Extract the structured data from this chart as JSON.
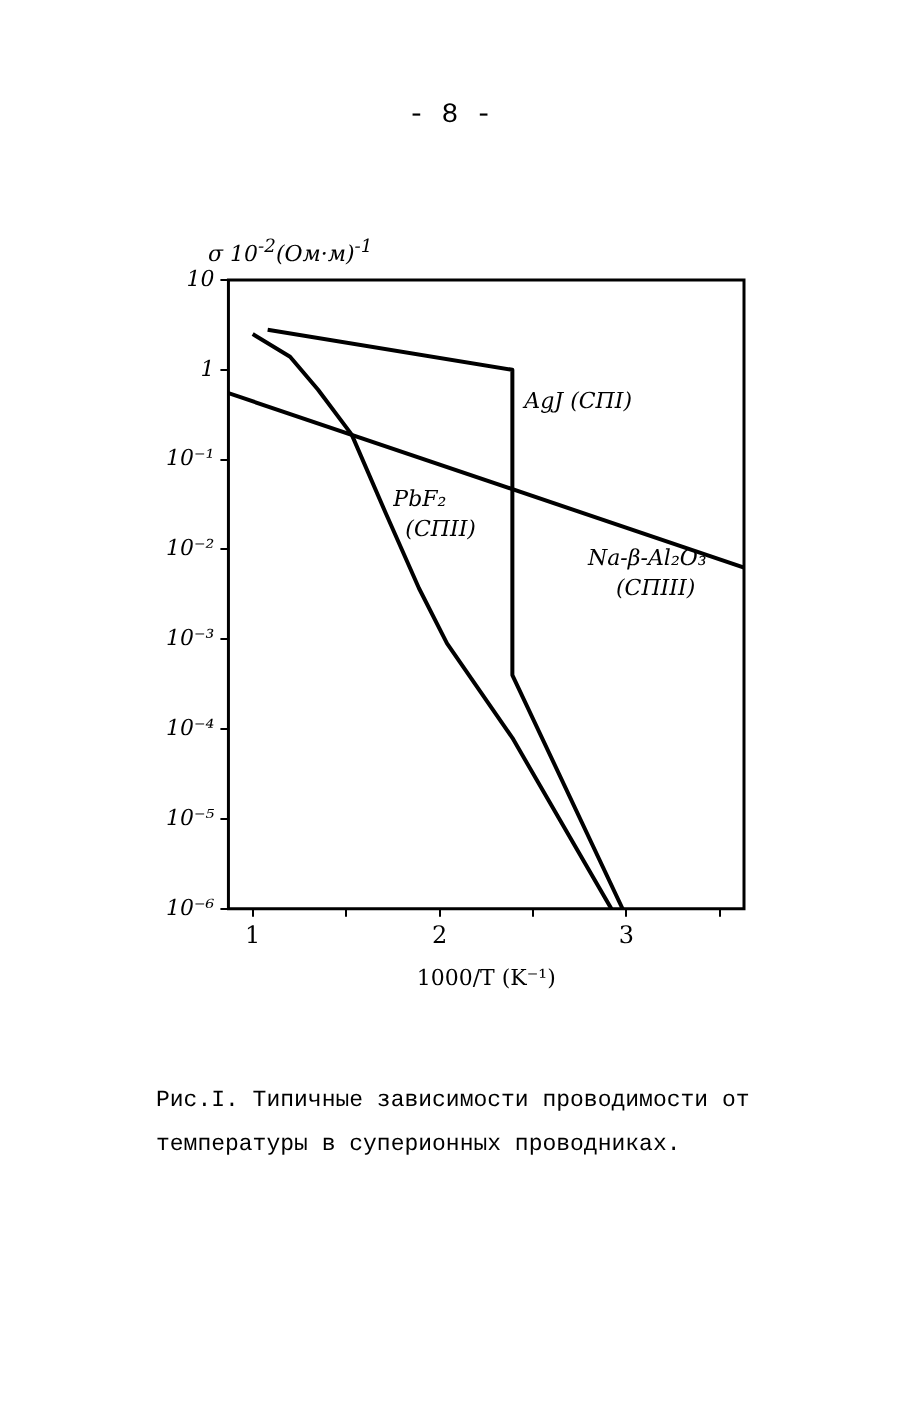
{
  "chart_data": {
    "type": "line",
    "xlabel": "1000/T (K⁻¹)",
    "ylabel": "σ 10$^{-2}$(Ом·м)$^{-1}$",
    "annotations": [
      "- 8 -",
      "Рис.I. Типичные зависимости проводимости от температуры в суперионных проводниках."
    ],
    "series": [
      {
        "name": "AgJ (СПI)",
        "color": "#000000",
        "x": [
          1.08,
          2.39,
          2.39,
          2.98
        ],
        "values": [
          2.8,
          1,
          0.0004,
          1e-06
        ]
      },
      {
        "name": "PbF₂ (СПII)",
        "color": "#000000",
        "x": [
          1.0,
          1.2,
          1.35,
          1.53,
          1.71,
          1.89,
          2.04,
          2.39,
          2.92
        ],
        "values": [
          2.5,
          1.4,
          0.6,
          0.19,
          0.026,
          0.0037,
          0.0009,
          8e-05,
          1e-06
        ]
      },
      {
        "name": "Na-β-Al₂O₃ (СПIII)",
        "color": "#000000",
        "x": [
          0.87,
          3.63
        ],
        "values": [
          0.55,
          0.0063
        ]
      }
    ],
    "log": "y",
    "xlim": [
      0.87,
      3.63
    ],
    "xticks": [
      1,
      {
        "value": 1.5,
        "label": null
      },
      2,
      {
        "value": 2.5,
        "label": null
      },
      3,
      {
        "value": 3.5,
        "label": null
      }
    ],
    "ylim": [
      1e-06,
      10
    ],
    "yticks": [
      {
        "value": 1e-06,
        "label": "10⁻⁶"
      },
      {
        "value": 1e-05,
        "label": "10⁻⁵"
      },
      {
        "value": 0.0001,
        "label": "10⁻⁴"
      },
      {
        "value": 0.001,
        "label": "10⁻³"
      },
      {
        "value": 0.01,
        "label": "10⁻²"
      },
      {
        "value": 0.1,
        "label": "10⁻¹"
      },
      1,
      10
    ],
    "grid": false,
    "legend": false,
    "marker": "none",
    "line_style": "solid"
  }
}
